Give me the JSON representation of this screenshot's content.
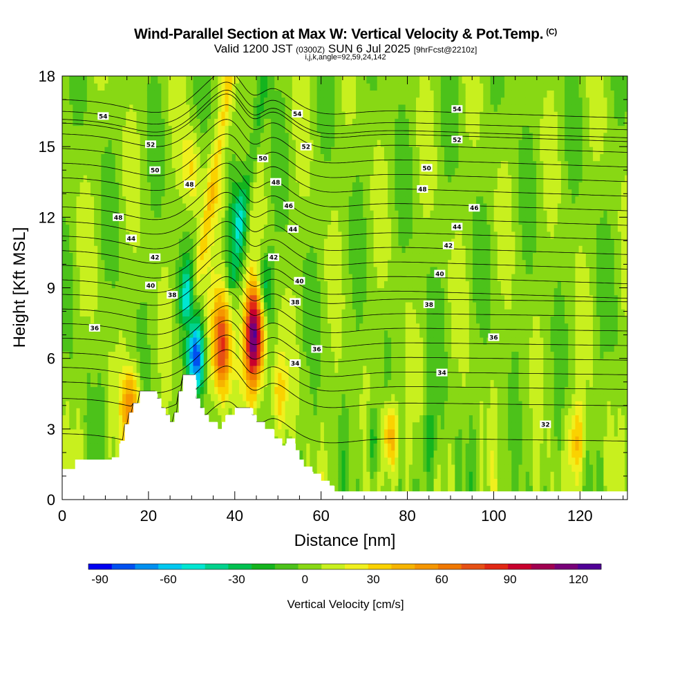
{
  "header": {
    "title": "Wind-Parallel Section at Max W: Vertical Velocity & Pot.Temp.",
    "copyright": "(C)",
    "valid_prefix": "Valid 1200 JST",
    "valid_utc": "(0300Z)",
    "valid_date": "SUN 6 Jul 2025",
    "forecast": "[9hrFcst@2210z]",
    "indices": "i,j,k,angle=92,59,24,142"
  },
  "chart_data": {
    "type": "heatmap",
    "xlabel": "Distance [nm]",
    "ylabel": "Height [Kft MSL]",
    "xlim": [
      0,
      131
    ],
    "ylim": [
      0,
      18
    ],
    "x_ticks": [
      0,
      20,
      40,
      60,
      80,
      100,
      120
    ],
    "y_ticks": [
      0,
      3,
      6,
      9,
      12,
      15,
      18
    ],
    "background_color": "#4cc21a",
    "updrafts": [
      {
        "x": 37,
        "z": 6.5,
        "w": 75
      },
      {
        "x": 44.5,
        "z": 7.0,
        "w": 120
      },
      {
        "x": 16,
        "z": 4.0,
        "w": 55
      },
      {
        "x": 76,
        "z": 2.7,
        "w": 50
      },
      {
        "x": 119,
        "z": 2.5,
        "w": 35
      },
      {
        "x": 50,
        "z": 4.5,
        "w": 30
      },
      {
        "x": 30,
        "z": 14,
        "w": 25
      },
      {
        "x": 36,
        "z": 13,
        "w": 18
      }
    ],
    "downdrafts": [
      {
        "x": 31,
        "z": 6.0,
        "w": -80
      },
      {
        "x": 29,
        "z": 8.5,
        "w": -45
      },
      {
        "x": 47,
        "z": 9.0,
        "w": -38
      },
      {
        "x": 41,
        "z": 12,
        "w": -25
      },
      {
        "x": 72,
        "z": 2.5,
        "w": -25
      },
      {
        "x": 85,
        "z": 2.5,
        "w": -20
      }
    ],
    "terrain": [
      [
        0,
        1.3
      ],
      [
        3,
        1.3
      ],
      [
        3,
        1.7
      ],
      [
        11.5,
        1.7
      ],
      [
        11.5,
        1.8
      ],
      [
        13.5,
        1.8
      ],
      [
        13.5,
        2.5
      ],
      [
        14.5,
        2.5
      ],
      [
        14.5,
        3.2
      ],
      [
        15.5,
        3.2
      ],
      [
        15.5,
        3.7
      ],
      [
        16.5,
        3.7
      ],
      [
        16.5,
        4.1
      ],
      [
        18,
        4.1
      ],
      [
        18,
        4.6
      ],
      [
        22,
        4.6
      ],
      [
        22,
        4.3
      ],
      [
        23,
        4.3
      ],
      [
        23,
        3.9
      ],
      [
        24,
        3.9
      ],
      [
        24,
        3.6
      ],
      [
        25,
        3.6
      ],
      [
        25,
        3.3
      ],
      [
        26,
        3.3
      ],
      [
        26,
        3.7
      ],
      [
        27,
        3.7
      ],
      [
        27,
        4.6
      ],
      [
        28,
        4.6
      ],
      [
        28,
        5.3
      ],
      [
        31,
        5.3
      ],
      [
        31,
        4.3
      ],
      [
        32,
        4.3
      ],
      [
        32,
        3.9
      ],
      [
        33,
        3.9
      ],
      [
        33,
        3.6
      ],
      [
        34,
        3.6
      ],
      [
        34,
        3.3
      ],
      [
        36,
        3.3
      ],
      [
        36,
        3.0
      ],
      [
        37,
        3.0
      ],
      [
        37,
        3.3
      ],
      [
        38,
        3.3
      ],
      [
        38,
        3.6
      ],
      [
        40,
        3.6
      ],
      [
        40,
        3.9
      ],
      [
        44,
        3.9
      ],
      [
        44,
        3.6
      ],
      [
        45,
        3.6
      ],
      [
        45,
        3.3
      ],
      [
        47,
        3.3
      ],
      [
        47,
        3.0
      ],
      [
        49,
        3.0
      ],
      [
        49,
        2.6
      ],
      [
        51,
        2.6
      ],
      [
        51,
        2.3
      ],
      [
        52,
        2.3
      ],
      [
        52,
        2.6
      ],
      [
        54,
        2.6
      ],
      [
        54,
        2.1
      ],
      [
        55,
        2.1
      ],
      [
        55,
        1.7
      ],
      [
        56,
        1.7
      ],
      [
        56,
        1.4
      ],
      [
        58,
        1.4
      ],
      [
        58,
        1.1
      ],
      [
        60,
        1.1
      ],
      [
        60,
        0.8
      ],
      [
        62,
        0.8
      ],
      [
        62,
        0.6
      ],
      [
        63,
        0.6
      ],
      [
        63,
        0.35
      ],
      [
        131,
        0.35
      ]
    ],
    "theta_contour_levels": [
      32,
      33,
      34,
      35,
      36,
      37,
      38,
      39,
      40,
      41,
      42,
      43,
      44,
      45,
      46,
      47,
      48,
      49,
      50,
      51,
      52,
      53,
      54,
      55
    ],
    "contour_labels": [
      {
        "text": "54",
        "x": 9.5,
        "z": 16.3
      },
      {
        "text": "52",
        "x": 20.5,
        "z": 15.1
      },
      {
        "text": "50",
        "x": 21.5,
        "z": 14.0
      },
      {
        "text": "48",
        "x": 29.5,
        "z": 13.4
      },
      {
        "text": "48",
        "x": 13,
        "z": 12.0
      },
      {
        "text": "44",
        "x": 16,
        "z": 11.1
      },
      {
        "text": "42",
        "x": 21.5,
        "z": 10.3
      },
      {
        "text": "40",
        "x": 20.5,
        "z": 9.1
      },
      {
        "text": "38",
        "x": 25.5,
        "z": 8.7
      },
      {
        "text": "36",
        "x": 7.5,
        "z": 7.3
      },
      {
        "text": "54",
        "x": 54.5,
        "z": 16.4
      },
      {
        "text": "52",
        "x": 56.5,
        "z": 15.0
      },
      {
        "text": "50",
        "x": 46.5,
        "z": 14.5
      },
      {
        "text": "48",
        "x": 49.5,
        "z": 13.5
      },
      {
        "text": "46",
        "x": 52.5,
        "z": 12.5
      },
      {
        "text": "44",
        "x": 53.5,
        "z": 11.5
      },
      {
        "text": "42",
        "x": 49,
        "z": 10.3
      },
      {
        "text": "40",
        "x": 55,
        "z": 9.3
      },
      {
        "text": "38",
        "x": 54,
        "z": 8.4
      },
      {
        "text": "36",
        "x": 59,
        "z": 6.4
      },
      {
        "text": "34",
        "x": 54,
        "z": 5.8
      },
      {
        "text": "54",
        "x": 91.5,
        "z": 16.6
      },
      {
        "text": "52",
        "x": 91.5,
        "z": 15.3
      },
      {
        "text": "50",
        "x": 84.5,
        "z": 14.1
      },
      {
        "text": "48",
        "x": 83.5,
        "z": 13.2
      },
      {
        "text": "46",
        "x": 95.5,
        "z": 12.4
      },
      {
        "text": "44",
        "x": 91.5,
        "z": 11.6
      },
      {
        "text": "42",
        "x": 89.5,
        "z": 10.8
      },
      {
        "text": "40",
        "x": 87.5,
        "z": 9.6
      },
      {
        "text": "38",
        "x": 85,
        "z": 8.3
      },
      {
        "text": "36",
        "x": 100,
        "z": 6.9
      },
      {
        "text": "34",
        "x": 88,
        "z": 5.4
      },
      {
        "text": "32",
        "x": 112,
        "z": 3.2
      }
    ]
  },
  "colorbar": {
    "title": "Vertical Velocity [cm/s]",
    "min": -95,
    "max": 130,
    "step": 10,
    "tick_values": [
      -90,
      -60,
      -30,
      0,
      30,
      60,
      90,
      120
    ],
    "tick_labels": [
      "-90",
      "-60",
      "-30",
      "0",
      "30",
      "60",
      "90",
      "120"
    ],
    "colors": [
      "#0000f0",
      "#0050f0",
      "#0090f0",
      "#00c8f0",
      "#00e6d2",
      "#00d28c",
      "#00c150",
      "#14b41e",
      "#4cc21a",
      "#88d814",
      "#c8f01e",
      "#f0f01e",
      "#fad200",
      "#f6b400",
      "#f59600",
      "#f07800",
      "#e65014",
      "#e12814",
      "#c8002d",
      "#a00050",
      "#780078",
      "#500096"
    ]
  }
}
